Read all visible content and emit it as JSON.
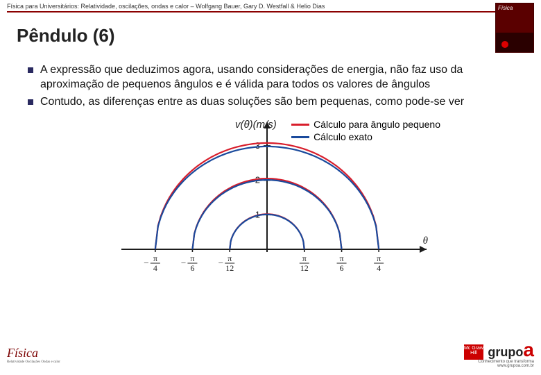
{
  "header": {
    "text": "Física para Universitários: Relatividade, oscilações, ondas e calor – Wolfgang Bauer, Gary D. Westfall & Helio Dias",
    "rule_color": "#8b0000"
  },
  "title": "Pêndulo (6)",
  "bullets": [
    "A expressão que deduzimos agora, usando considerações de energia, não faz uso da aproximação de pequenos ângulos e é válida para todos os valores de ângulos",
    "Contudo, as diferenças entre as duas soluções são bem pequenas, como pode-se ver"
  ],
  "chart": {
    "type": "arc-plot",
    "y_axis_title": "v(θ)(m/s)",
    "x_axis_title": "θ",
    "y_ticks": [
      1,
      2,
      3
    ],
    "ylim": [
      0,
      3.3
    ],
    "x_tick_labels": [
      "-π/4",
      "-π/6",
      "-π/12",
      "π/12",
      "π/6",
      "π/4"
    ],
    "x_tick_positions_rel": [
      -0.785,
      -0.524,
      -0.262,
      0.262,
      0.524,
      0.785
    ],
    "xlim": [
      -0.95,
      0.95
    ],
    "legend": [
      {
        "label": "Cálculo para ângulo pequeno",
        "color": "#d81e2c"
      },
      {
        "label": "Cálculo exato",
        "color": "#1a4a9c"
      }
    ],
    "series_pairs": [
      {
        "amplitude_deg": 45,
        "v_max_approx": 3.08,
        "v_max_exact": 2.98
      },
      {
        "amplitude_deg": 30,
        "v_max_approx": 2.05,
        "v_max_exact": 2.01
      },
      {
        "amplitude_deg": 15,
        "v_max_approx": 1.02,
        "v_max_exact": 1.01
      }
    ],
    "colors": {
      "approx": "#d81e2c",
      "exact": "#1a4a9c",
      "axis": "#1c1c1c",
      "background": "#ffffff"
    },
    "line_width": 2.2,
    "axis_width": 2,
    "font_size_axis": 13,
    "font_size_legend": 14
  },
  "footer": {
    "left_logo_text": "Física",
    "left_logo_sub": "Relatividade\nOscilações\nOndas e calor",
    "right_brand": "grupo",
    "right_brand_accent": "a",
    "right_tag": "Conhecimento que transforma",
    "right_url": "www.grupoa.com.br",
    "mh_text": "Mc\nGraw\nHill"
  }
}
